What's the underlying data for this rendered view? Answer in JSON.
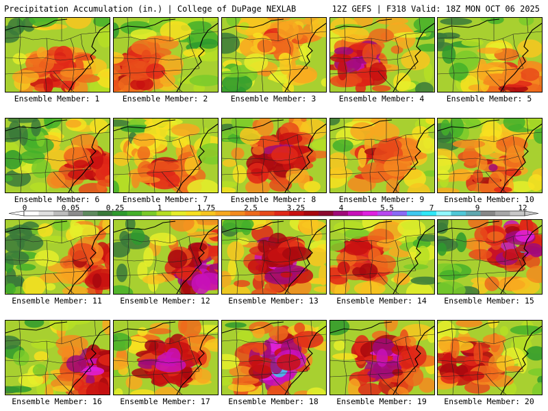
{
  "header": {
    "title_left": "Precipitation Accumulation (in.) | College of DuPage NEXLAB",
    "title_right": "12Z GEFS | F318 Valid: 18Z MON OCT 06 2025"
  },
  "member_label_prefix": "Ensemble Member: ",
  "members": [
    {
      "number": "1",
      "wetness": 0.45,
      "hot_spot": "south-center"
    },
    {
      "number": "2",
      "wetness": 0.4,
      "hot_spot": "south-west"
    },
    {
      "number": "3",
      "wetness": 0.25,
      "hot_spot": "north-center"
    },
    {
      "number": "4",
      "wetness": 0.6,
      "hot_spot": "west-center"
    },
    {
      "number": "5",
      "wetness": 0.35,
      "hot_spot": "south-east"
    },
    {
      "number": "6",
      "wetness": 0.4,
      "hot_spot": "east-coast"
    },
    {
      "number": "7",
      "wetness": 0.35,
      "hot_spot": "south-center"
    },
    {
      "number": "8",
      "wetness": 0.55,
      "hot_spot": "center"
    },
    {
      "number": "9",
      "wetness": 0.4,
      "hot_spot": "center"
    },
    {
      "number": "10",
      "wetness": 0.4,
      "hot_spot": "south-center"
    },
    {
      "number": "11",
      "wetness": 0.45,
      "hot_spot": "east-coast"
    },
    {
      "number": "12",
      "wetness": 0.7,
      "hot_spot": "east-coast"
    },
    {
      "number": "13",
      "wetness": 0.65,
      "hot_spot": "center"
    },
    {
      "number": "14",
      "wetness": 0.5,
      "hot_spot": "west-center"
    },
    {
      "number": "15",
      "wetness": 0.7,
      "hot_spot": "north-east"
    },
    {
      "number": "16",
      "wetness": 0.6,
      "hot_spot": "east-coast"
    },
    {
      "number": "17",
      "wetness": 0.65,
      "hot_spot": "center"
    },
    {
      "number": "18",
      "wetness": 0.75,
      "hot_spot": "center"
    },
    {
      "number": "19",
      "wetness": 0.6,
      "hot_spot": "center"
    },
    {
      "number": "20",
      "wetness": 0.55,
      "hot_spot": "west-center"
    }
  ],
  "colorbar": {
    "labels": [
      "0",
      "0.05",
      "0.25",
      "1",
      "1.75",
      "2.5",
      "3.25",
      "4",
      "5.5",
      "7",
      "9",
      "12"
    ],
    "colors": [
      "#ffffff",
      "#e0e0e0",
      "#bdbdbd",
      "#8c8c8c",
      "#5f8a5f",
      "#3a7a3a",
      "#2e9a2e",
      "#44b02a",
      "#7acb2a",
      "#b6df24",
      "#e6ee2a",
      "#f8e020",
      "#f8c520",
      "#f8a820",
      "#f48a1e",
      "#ee6a1c",
      "#e84a1a",
      "#e02818",
      "#c81010",
      "#a8080e",
      "#8c0a30",
      "#a00a78",
      "#c810b8",
      "#e020e0",
      "#b848f0",
      "#8a6af6",
      "#40c8f0",
      "#30e8f8",
      "#90f8ff",
      "#50c8d8",
      "#60a8b0",
      "#888888",
      "#a8a8a8",
      "#c8c8c8"
    ]
  }
}
